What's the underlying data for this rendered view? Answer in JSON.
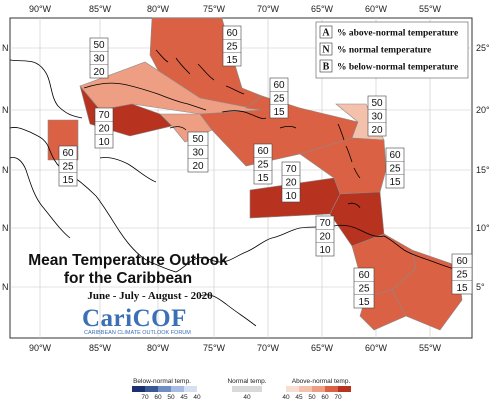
{
  "map": {
    "title_line1": "Mean Temperature Outlook",
    "title_line2": "for the Caribbean",
    "season": "June - July - August - 2020",
    "logo_text": "CariCOF",
    "logo_subtitle": "CARIBBEAN CLIMATE OUTLOOK FORUM",
    "lon_labels_top": [
      "90°W",
      "85°W",
      "80°W",
      "75°W",
      "70°W",
      "65°W",
      "60°W",
      "55°W"
    ],
    "lon_labels_bottom": [
      "90°W",
      "85°W",
      "80°W",
      "75°W",
      "70°W",
      "65°W",
      "60°W",
      "55°W"
    ],
    "lat_labels_right": [
      "25°",
      "20°",
      "15°",
      "10°",
      "5°"
    ],
    "lat_labels_left": [
      "N",
      "N",
      "N",
      "N",
      "N"
    ]
  },
  "legend_key": [
    {
      "letter": "A",
      "text": "% above-normal temperature"
    },
    {
      "letter": "N",
      "text": "% normal temperature"
    },
    {
      "letter": "B",
      "text": "% below-normal temperature"
    }
  ],
  "colors": {
    "above_40": "#f7ddd2",
    "above_45": "#f4c1ad",
    "above_50": "#ee9e83",
    "above_60": "#db6144",
    "above_70": "#b7321f",
    "border": "#8a8a8a",
    "coast": "#000000"
  },
  "probability_boxes": [
    {
      "region": "bahamas",
      "A": "60",
      "N": "25",
      "B": "15"
    },
    {
      "region": "cuba",
      "A": "50",
      "N": "30",
      "B": "20"
    },
    {
      "region": "cayman-jamaica",
      "A": "70",
      "N": "20",
      "B": "10"
    },
    {
      "region": "belize",
      "A": "60",
      "N": "25",
      "B": "15"
    },
    {
      "region": "hispaniola-puerto-rico",
      "A": "60",
      "N": "25",
      "B": "15"
    },
    {
      "region": "jamaica-south",
      "A": "50",
      "N": "30",
      "B": "20"
    },
    {
      "region": "northern-leewards",
      "A": "50",
      "N": "30",
      "B": "20"
    },
    {
      "region": "caribbean-sea",
      "A": "60",
      "N": "25",
      "B": "15"
    },
    {
      "region": "windwards",
      "A": "60",
      "N": "25",
      "B": "15"
    },
    {
      "region": "abc-islands",
      "A": "70",
      "N": "20",
      "B": "10"
    },
    {
      "region": "trinidad",
      "A": "70",
      "N": "20",
      "B": "10"
    },
    {
      "region": "guyana",
      "A": "60",
      "N": "25",
      "B": "15"
    },
    {
      "region": "suriname",
      "A": "60",
      "N": "25",
      "B": "15"
    }
  ],
  "colorbar": {
    "below_title": "Below-normal temp.",
    "normal_title": "Normal temp.",
    "above_title": "Above-normal temp.",
    "below_ticks": [
      "70",
      "60",
      "50",
      "45",
      "40"
    ],
    "normal_ticks": [
      "40"
    ],
    "above_ticks": [
      "40",
      "45",
      "50",
      "60",
      "70"
    ],
    "below_colors": [
      "#1c2f6e",
      "#3a5796",
      "#6f8fc4",
      "#a7bce0",
      "#d6e0f0"
    ],
    "normal_colors": [
      "#d9d9d9"
    ],
    "above_colors": [
      "#f7ddd2",
      "#f4c1ad",
      "#ee9e83",
      "#db6144",
      "#b7321f"
    ]
  }
}
